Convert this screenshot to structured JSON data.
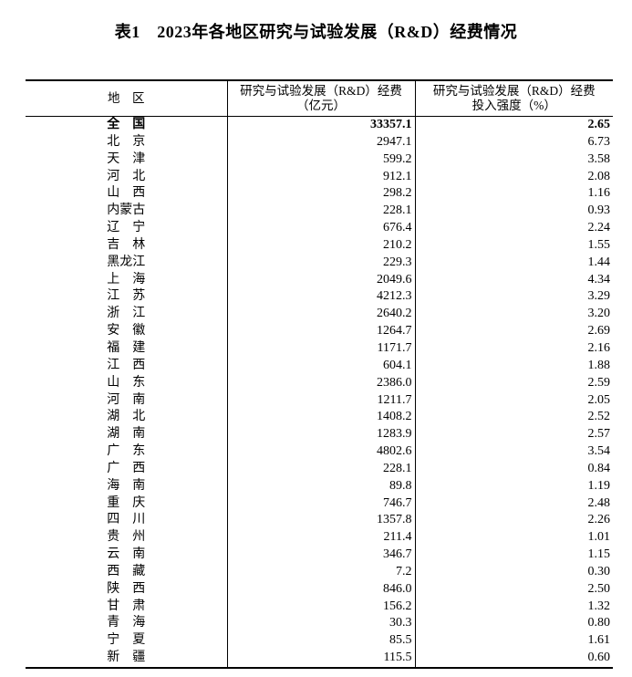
{
  "page": {
    "title": "表1　2023年各地区研究与试验发展（R&D）经费情况"
  },
  "table": {
    "headers": {
      "region": "地　区",
      "expenditure_line1": "研究与试验发展（R&D）经费",
      "expenditure_line2": "（亿元）",
      "intensity_line1": "研究与试验发展（R&D）经费",
      "intensity_line2": "投入强度（%）"
    },
    "rows": [
      {
        "region": "全　国",
        "expenditure": "33357.1",
        "intensity": "2.65",
        "bold": true
      },
      {
        "region": "北　京",
        "expenditure": "2947.1",
        "intensity": "6.73",
        "bold": false
      },
      {
        "region": "天　津",
        "expenditure": "599.2",
        "intensity": "3.58",
        "bold": false
      },
      {
        "region": "河　北",
        "expenditure": "912.1",
        "intensity": "2.08",
        "bold": false
      },
      {
        "region": "山　西",
        "expenditure": "298.2",
        "intensity": "1.16",
        "bold": false
      },
      {
        "region": "内蒙古",
        "expenditure": "228.1",
        "intensity": "0.93",
        "bold": false
      },
      {
        "region": "辽　宁",
        "expenditure": "676.4",
        "intensity": "2.24",
        "bold": false
      },
      {
        "region": "吉　林",
        "expenditure": "210.2",
        "intensity": "1.55",
        "bold": false
      },
      {
        "region": "黑龙江",
        "expenditure": "229.3",
        "intensity": "1.44",
        "bold": false
      },
      {
        "region": "上　海",
        "expenditure": "2049.6",
        "intensity": "4.34",
        "bold": false
      },
      {
        "region": "江　苏",
        "expenditure": "4212.3",
        "intensity": "3.29",
        "bold": false
      },
      {
        "region": "浙　江",
        "expenditure": "2640.2",
        "intensity": "3.20",
        "bold": false
      },
      {
        "region": "安　徽",
        "expenditure": "1264.7",
        "intensity": "2.69",
        "bold": false
      },
      {
        "region": "福　建",
        "expenditure": "1171.7",
        "intensity": "2.16",
        "bold": false
      },
      {
        "region": "江　西",
        "expenditure": "604.1",
        "intensity": "1.88",
        "bold": false
      },
      {
        "region": "山　东",
        "expenditure": "2386.0",
        "intensity": "2.59",
        "bold": false
      },
      {
        "region": "河　南",
        "expenditure": "1211.7",
        "intensity": "2.05",
        "bold": false
      },
      {
        "region": "湖　北",
        "expenditure": "1408.2",
        "intensity": "2.52",
        "bold": false
      },
      {
        "region": "湖　南",
        "expenditure": "1283.9",
        "intensity": "2.57",
        "bold": false
      },
      {
        "region": "广　东",
        "expenditure": "4802.6",
        "intensity": "3.54",
        "bold": false
      },
      {
        "region": "广　西",
        "expenditure": "228.1",
        "intensity": "0.84",
        "bold": false
      },
      {
        "region": "海　南",
        "expenditure": "89.8",
        "intensity": "1.19",
        "bold": false
      },
      {
        "region": "重　庆",
        "expenditure": "746.7",
        "intensity": "2.48",
        "bold": false
      },
      {
        "region": "四　川",
        "expenditure": "1357.8",
        "intensity": "2.26",
        "bold": false
      },
      {
        "region": "贵　州",
        "expenditure": "211.4",
        "intensity": "1.01",
        "bold": false
      },
      {
        "region": "云　南",
        "expenditure": "346.7",
        "intensity": "1.15",
        "bold": false
      },
      {
        "region": "西　藏",
        "expenditure": "7.2",
        "intensity": "0.30",
        "bold": false
      },
      {
        "region": "陕　西",
        "expenditure": "846.0",
        "intensity": "2.50",
        "bold": false
      },
      {
        "region": "甘　肃",
        "expenditure": "156.2",
        "intensity": "1.32",
        "bold": false
      },
      {
        "region": "青　海",
        "expenditure": "30.3",
        "intensity": "0.80",
        "bold": false
      },
      {
        "region": "宁　夏",
        "expenditure": "85.5",
        "intensity": "1.61",
        "bold": false
      },
      {
        "region": "新　疆",
        "expenditure": "115.5",
        "intensity": "0.60",
        "bold": false
      }
    ]
  },
  "colors": {
    "text": "#000000",
    "background": "#ffffff",
    "border": "#000000"
  }
}
